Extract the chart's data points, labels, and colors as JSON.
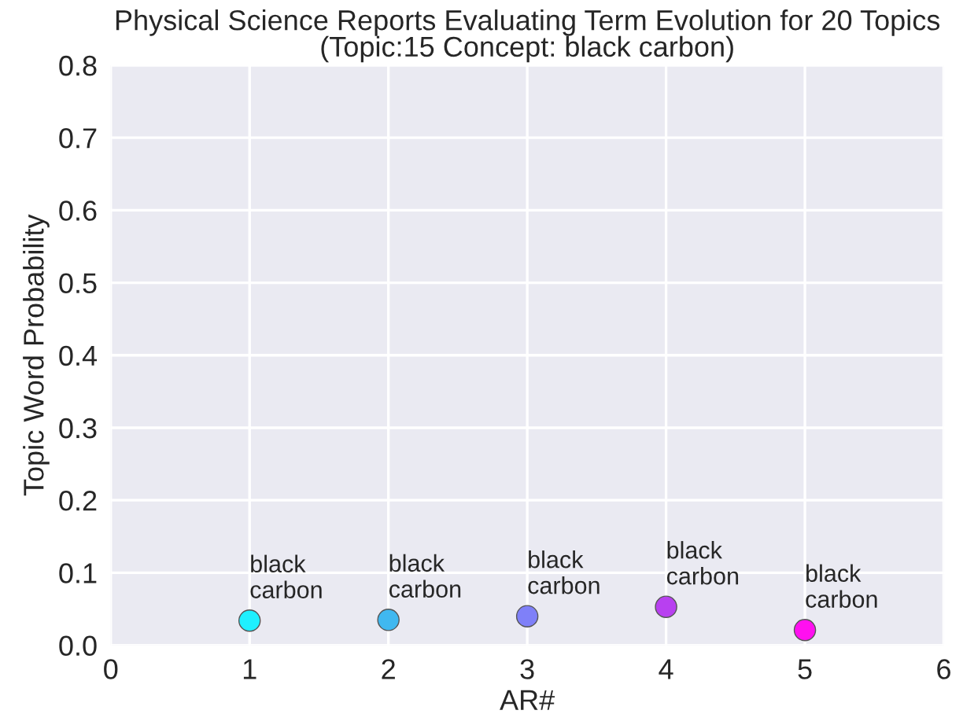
{
  "chart_data": {
    "type": "scatter",
    "title": "Physical Science Reports Evaluating Term Evolution for 20 Topics\n(Topic:15 Concept: black carbon)",
    "xlabel": "AR#",
    "ylabel": "Topic Word Probability",
    "x": [
      1,
      2,
      3,
      4,
      5
    ],
    "series": [
      {
        "values": [
          0.034,
          0.035,
          0.04,
          0.053,
          0.021
        ],
        "colors": [
          "#1ff0ff",
          "#40b8f0",
          "#7f80f8",
          "#b840f0",
          "#ff10f0"
        ]
      }
    ],
    "annotations": [
      {
        "text": "black\ncarbon",
        "x": 1,
        "y": 0.034
      },
      {
        "text": "black\ncarbon",
        "x": 2,
        "y": 0.035
      },
      {
        "text": "black\ncarbon",
        "x": 3,
        "y": 0.04
      },
      {
        "text": "black\ncarbon",
        "x": 4,
        "y": 0.053
      },
      {
        "text": "black\ncarbon",
        "x": 5,
        "y": 0.021
      }
    ],
    "xlim": [
      0,
      6
    ],
    "xticks": [
      0,
      1,
      2,
      3,
      4,
      5,
      6
    ],
    "ylim": [
      0,
      0.8
    ],
    "yticks": [
      {
        "value": 0,
        "label": "0.0"
      },
      0.1,
      0.2,
      0.3,
      0.4,
      0.5,
      0.6,
      0.7,
      0.8
    ],
    "grid": true,
    "marker": "circle"
  }
}
